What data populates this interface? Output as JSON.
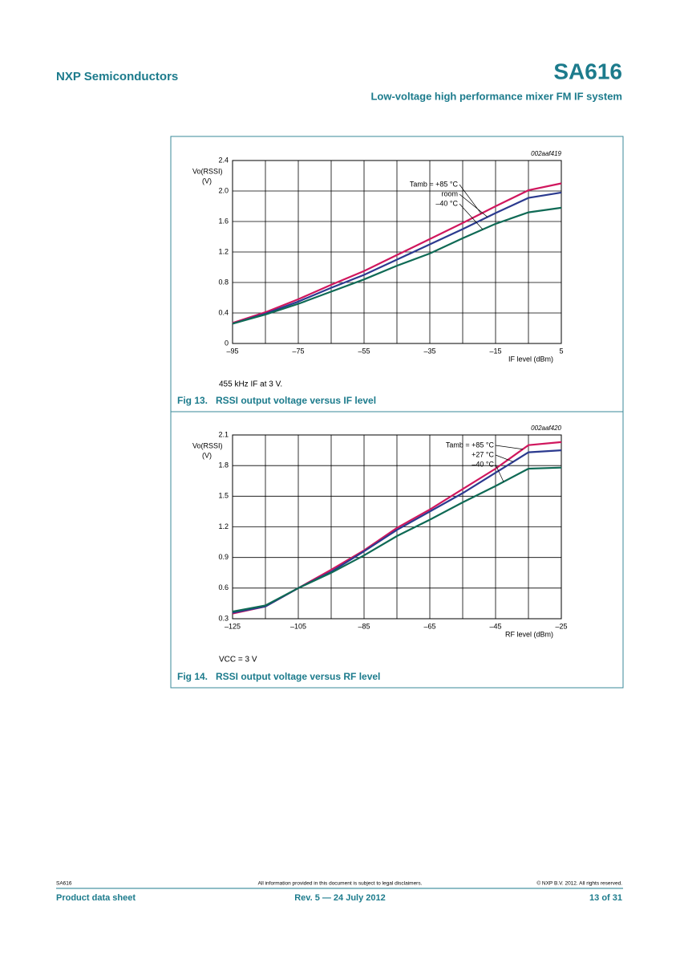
{
  "header": {
    "company": "NXP Semiconductors",
    "part": "SA616",
    "subtitle": "Low-voltage high performance mixer FM IF system"
  },
  "chart_data": [
    {
      "type": "line",
      "code": "002aaf419",
      "ylabel": "Vo(RSSI)",
      "yunit": "(V)",
      "xlabel": "IF level (dBm)",
      "note": "455 kHz IF at 3 V.",
      "caption": "Fig 13.   RSSI output voltage versus IF level",
      "grid": true,
      "x": [
        -95,
        -85,
        -75,
        -65,
        -55,
        -45,
        -35,
        -25,
        -15,
        -5,
        5
      ],
      "xlim": [
        -95,
        5
      ],
      "xticks": [
        {
          "value": -95,
          "label": "–95"
        },
        {
          "value": -75,
          "label": "–75"
        },
        {
          "value": -55,
          "label": "–55"
        },
        {
          "value": -35,
          "label": "–35"
        },
        {
          "value": -15,
          "label": "–15"
        },
        5
      ],
      "ylim": [
        0,
        2.4
      ],
      "yticks": [
        0,
        0.4,
        0.8,
        1.2,
        1.6,
        {
          "value": 2,
          "label": "2.0"
        },
        2.4
      ],
      "series": [
        {
          "name": "Tamb = +85 °C",
          "color": "#d0175e",
          "values": [
            0.27,
            0.41,
            0.58,
            0.77,
            0.95,
            1.16,
            1.37,
            1.58,
            1.8,
            2.01,
            2.1
          ]
        },
        {
          "name": "room",
          "color": "#2b3a8f",
          "values": [
            0.26,
            0.39,
            0.55,
            0.73,
            0.9,
            1.1,
            1.3,
            1.5,
            1.71,
            1.91,
            1.98
          ]
        },
        {
          "name": "–40 °C",
          "color": "#0f6a55",
          "values": [
            0.26,
            0.38,
            0.52,
            0.68,
            0.84,
            1.02,
            1.18,
            1.38,
            1.57,
            1.72,
            1.78
          ]
        }
      ]
    },
    {
      "type": "line",
      "code": "002aaf420",
      "ylabel": "Vo(RSSI)",
      "yunit": "(V)",
      "xlabel": "RF level (dBm)",
      "note": "VCC = 3 V",
      "caption": "Fig 14.   RSSI output voltage versus RF level",
      "grid": true,
      "x": [
        -125,
        -115,
        -105,
        -95,
        -85,
        -75,
        -65,
        -55,
        -45,
        -35,
        -25
      ],
      "xlim": [
        -125,
        -25
      ],
      "xticks": [
        {
          "value": -125,
          "label": "–125"
        },
        {
          "value": -105,
          "label": "–105"
        },
        {
          "value": -85,
          "label": "–85"
        },
        {
          "value": -65,
          "label": "–65"
        },
        {
          "value": -45,
          "label": "–45"
        },
        {
          "value": -25,
          "label": "–25"
        }
      ],
      "ylim": [
        0.3,
        2.1
      ],
      "yticks": [
        0.3,
        0.6,
        0.9,
        1.2,
        1.5,
        1.8,
        2.1
      ],
      "series": [
        {
          "name": "Tamb = +85 °C",
          "color": "#d0175e",
          "values": [
            0.35,
            0.42,
            0.6,
            0.78,
            0.97,
            1.19,
            1.37,
            1.57,
            1.77,
            2.0,
            2.03
          ]
        },
        {
          "name": "+27 °C",
          "color": "#2b3a8f",
          "values": [
            0.36,
            0.42,
            0.6,
            0.76,
            0.96,
            1.17,
            1.35,
            1.53,
            1.73,
            1.93,
            1.95
          ]
        },
        {
          "name": "–40 °C",
          "color": "#0f6a55",
          "values": [
            0.37,
            0.43,
            0.6,
            0.75,
            0.92,
            1.11,
            1.27,
            1.44,
            1.6,
            1.77,
            1.78
          ]
        }
      ]
    }
  ],
  "footer": {
    "part": "SA616",
    "disclaimer": "All information provided in this document is subject to legal disclaimers.",
    "copyright": "© NXP B.V. 2012. All rights reserved.",
    "doctype": "Product data sheet",
    "revision": "Rev. 5 — 24 July 2012",
    "page": "13 of 31"
  }
}
